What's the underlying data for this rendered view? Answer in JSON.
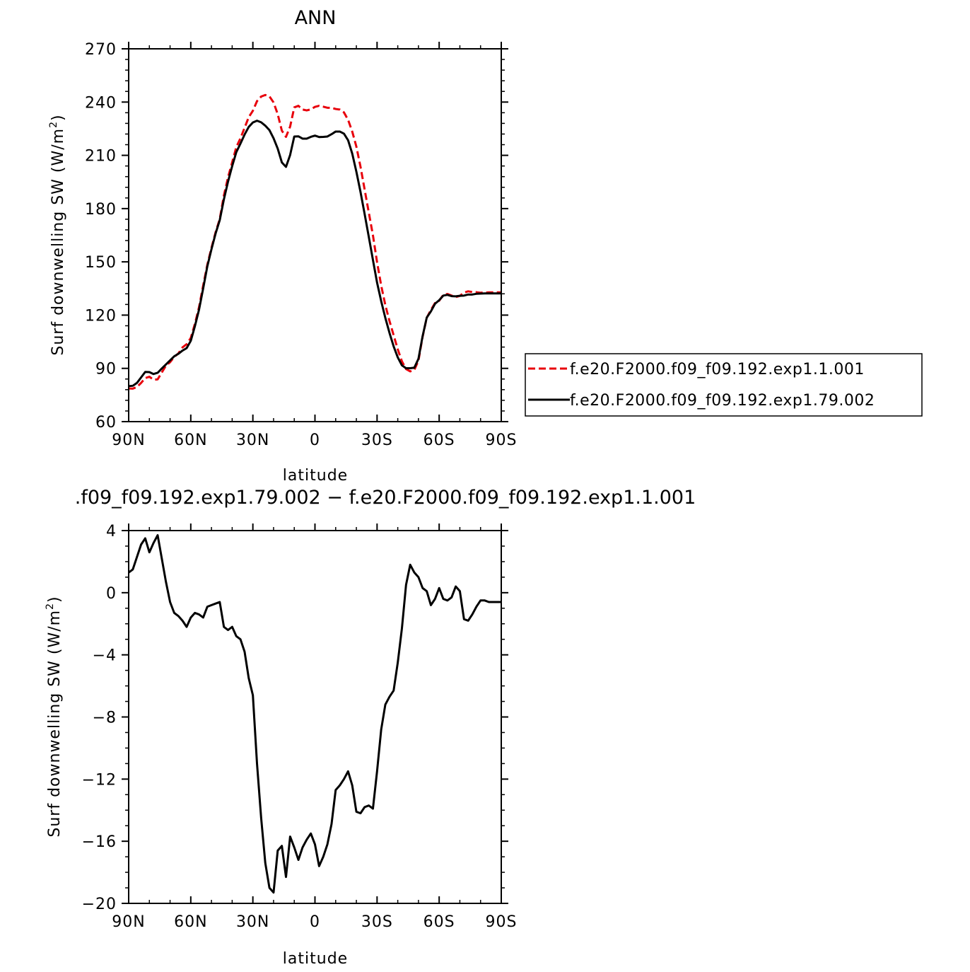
{
  "chart_data": [
    {
      "type": "line",
      "title": "ANN",
      "xlabel": "latitude",
      "ylabel": "Surf downwelling SW (W/m",
      "ylabel_sup": "2",
      "ylabel_end": ")",
      "x_direction": "north-to-south",
      "xlim": [
        90,
        -90
      ],
      "ylim": [
        60,
        270
      ],
      "xticks": [
        {
          "value": 90,
          "label": "90N"
        },
        {
          "value": 60,
          "label": "60N"
        },
        {
          "value": 30,
          "label": "30N"
        },
        {
          "value": 0,
          "label": "0"
        },
        {
          "value": -30,
          "label": "30S"
        },
        {
          "value": -60,
          "label": "60S"
        },
        {
          "value": -90,
          "label": "90S"
        }
      ],
      "yticks": [
        {
          "value": 270,
          "label": "270"
        },
        {
          "value": 240,
          "label": "240"
        },
        {
          "value": 210,
          "label": "210"
        },
        {
          "value": 180,
          "label": "180"
        },
        {
          "value": 150,
          "label": "150"
        },
        {
          "value": 120,
          "label": "120"
        },
        {
          "value": 90,
          "label": "90"
        },
        {
          "value": 60,
          "label": "60"
        }
      ],
      "grid": false,
      "legend_position": "right",
      "series": [
        {
          "name": "f.e20.F2000.f09_f09.192.exp1.1.001",
          "color": "#e8000b",
          "dash": "dashed",
          "x": [
            90,
            88,
            86,
            84,
            82,
            80,
            78,
            76,
            74,
            72,
            70,
            68,
            66,
            64,
            62,
            60,
            58,
            56,
            54,
            52,
            50,
            48,
            46,
            44,
            42,
            40,
            38,
            36,
            34,
            32,
            30,
            28,
            26,
            24,
            22,
            20,
            18,
            16,
            14,
            12,
            10,
            8,
            6,
            4,
            2,
            0,
            -2,
            -4,
            -6,
            -8,
            -10,
            -12,
            -14,
            -16,
            -18,
            -20,
            -22,
            -24,
            -26,
            -28,
            -30,
            -32,
            -34,
            -36,
            -38,
            -40,
            -42,
            -44,
            -46,
            -48,
            -50,
            -52,
            -54,
            -56,
            -58,
            -60,
            -62,
            -64,
            -66,
            -68,
            -70,
            -72,
            -74,
            -76,
            -78,
            -80,
            -82,
            -84,
            -86,
            -88,
            -90
          ],
          "y": [
            78.7,
            78.6,
            79.5,
            81.8,
            84.5,
            85.3,
            83.6,
            83.8,
            87.7,
            91.5,
            93.5,
            96.4,
            98.4,
            101.8,
            103.6,
            107.1,
            115.1,
            124.5,
            136.7,
            148.4,
            157.9,
            166.7,
            174.1,
            187.4,
            197.6,
            206.1,
            214.6,
            219.6,
            225.5,
            231.5,
            235.1,
            240.5,
            243.1,
            244.0,
            243.2,
            239.8,
            233.2,
            223.9,
            220.4,
            226.2,
            237.0,
            237.9,
            235.8,
            235.3,
            235.9,
            237.3,
            237.9,
            237.4,
            236.8,
            236.8,
            236.1,
            235.8,
            234.2,
            230.0,
            223.4,
            214.9,
            203.6,
            190.7,
            177.8,
            165.0,
            149.8,
            136.6,
            125.6,
            116.7,
            108.7,
            100.7,
            94.0,
            89.6,
            88.3,
            89.1,
            94.4,
            107.8,
            118.5,
            122.9,
            126.8,
            128.1,
            131.4,
            131.9,
            131.0,
            130.2,
            130.8,
            132.7,
            133.4,
            133.0,
            132.9,
            132.6,
            132.7,
            132.8,
            132.8,
            132.8,
            132.8
          ]
        },
        {
          "name": "f.e20.F2000.f09_f09.192.exp1.79.002",
          "color": "#000000",
          "dash": "solid",
          "x": [
            90,
            88,
            86,
            84,
            82,
            80,
            78,
            76,
            74,
            72,
            70,
            68,
            66,
            64,
            62,
            60,
            58,
            56,
            54,
            52,
            50,
            48,
            46,
            44,
            42,
            40,
            38,
            36,
            34,
            32,
            30,
            28,
            26,
            24,
            22,
            20,
            18,
            16,
            14,
            12,
            10,
            8,
            6,
            4,
            2,
            0,
            -2,
            -4,
            -6,
            -8,
            -10,
            -12,
            -14,
            -16,
            -18,
            -20,
            -22,
            -24,
            -26,
            -28,
            -30,
            -32,
            -34,
            -36,
            -38,
            -40,
            -42,
            -44,
            -46,
            -48,
            -50,
            -52,
            -54,
            -56,
            -58,
            -60,
            -62,
            -64,
            -66,
            -68,
            -70,
            -72,
            -74,
            -76,
            -78,
            -80,
            -82,
            -84,
            -86,
            -88,
            -90
          ],
          "y": [
            80.0,
            80.2,
            81.8,
            84.9,
            88.0,
            87.9,
            86.8,
            87.5,
            89.9,
            92.2,
            94.5,
            96.8,
            98.2,
            100.0,
            101.4,
            105.5,
            113.8,
            123.1,
            135.1,
            147.5,
            157.1,
            166.0,
            173.5,
            185.2,
            195.2,
            203.9,
            211.8,
            216.6,
            221.7,
            226.0,
            228.5,
            229.5,
            228.6,
            226.7,
            224.2,
            219.6,
            213.8,
            206.0,
            203.5,
            210.2,
            220.6,
            220.7,
            219.4,
            219.4,
            220.4,
            221.1,
            220.3,
            220.4,
            220.6,
            221.9,
            223.4,
            223.4,
            222.2,
            218.5,
            211.0,
            200.8,
            189.4,
            176.9,
            164.1,
            151.1,
            138.3,
            127.8,
            118.4,
            110.0,
            102.4,
            96.2,
            91.7,
            90.1,
            90.1,
            90.4,
            95.4,
            108.1,
            118.6,
            122.1,
            126.4,
            128.4,
            131.0,
            131.4,
            130.7,
            130.6,
            130.9,
            131.0,
            131.6,
            131.6,
            132.0,
            132.1,
            132.2,
            132.2,
            132.2,
            132.2,
            132.2
          ]
        }
      ]
    },
    {
      "type": "line",
      "title": ".f09_f09.192.exp1.79.002 − f.e20.F2000.f09_f09.192.exp1.1.001",
      "xlabel": "latitude",
      "ylabel": "Surf downwelling SW (W/m",
      "ylabel_sup": "2",
      "ylabel_end": ")",
      "x_direction": "north-to-south",
      "xlim": [
        90,
        -90
      ],
      "ylim": [
        -20,
        4
      ],
      "xticks": [
        {
          "value": 90,
          "label": "90N"
        },
        {
          "value": 60,
          "label": "60N"
        },
        {
          "value": 30,
          "label": "30N"
        },
        {
          "value": 0,
          "label": "0"
        },
        {
          "value": -30,
          "label": "30S"
        },
        {
          "value": -60,
          "label": "60S"
        },
        {
          "value": -90,
          "label": "90S"
        }
      ],
      "yticks": [
        {
          "value": 4,
          "label": "4"
        },
        {
          "value": 0,
          "label": "0"
        },
        {
          "value": -4,
          "label": "−4"
        },
        {
          "value": -8,
          "label": "−8"
        },
        {
          "value": -12,
          "label": "−12"
        },
        {
          "value": -16,
          "label": "−16"
        },
        {
          "value": -20,
          "label": "−20"
        }
      ],
      "grid": false,
      "series": [
        {
          "color": "#000000",
          "dash": "solid",
          "x": [
            90,
            88,
            86,
            84,
            82,
            80,
            78,
            76,
            74,
            72,
            70,
            68,
            66,
            64,
            62,
            60,
            58,
            56,
            54,
            52,
            50,
            48,
            46,
            44,
            42,
            40,
            38,
            36,
            34,
            32,
            30,
            28,
            26,
            24,
            22,
            20,
            18,
            16,
            14,
            12,
            10,
            8,
            6,
            4,
            2,
            0,
            -2,
            -4,
            -6,
            -8,
            -10,
            -12,
            -14,
            -16,
            -18,
            -20,
            -22,
            -24,
            -26,
            -28,
            -30,
            -32,
            -34,
            -36,
            -38,
            -40,
            -42,
            -44,
            -46,
            -48,
            -50,
            -52,
            -54,
            -56,
            -58,
            -60,
            -62,
            -64,
            -66,
            -68,
            -70,
            -72,
            -74,
            -76,
            -78,
            -80,
            -82,
            -84,
            -86,
            -88,
            -90
          ],
          "y": [
            1.3,
            1.5,
            2.3,
            3.1,
            3.5,
            2.6,
            3.2,
            3.7,
            2.2,
            0.7,
            -0.6,
            -1.3,
            -1.5,
            -1.8,
            -2.2,
            -1.6,
            -1.3,
            -1.4,
            -1.6,
            -0.9,
            -0.8,
            -0.7,
            -0.6,
            -2.2,
            -2.4,
            -2.2,
            -2.8,
            -3.0,
            -3.8,
            -5.5,
            -6.6,
            -11.0,
            -14.5,
            -17.4,
            -19.0,
            -19.3,
            -16.6,
            -16.3,
            -18.3,
            -15.7,
            -16.4,
            -17.2,
            -16.4,
            -15.9,
            -15.5,
            -16.2,
            -17.6,
            -17.0,
            -16.2,
            -14.9,
            -12.7,
            -12.4,
            -12.0,
            -11.5,
            -12.4,
            -14.1,
            -14.2,
            -13.8,
            -13.7,
            -13.9,
            -11.5,
            -8.8,
            -7.2,
            -6.7,
            -6.3,
            -4.5,
            -2.3,
            0.5,
            1.8,
            1.3,
            1.0,
            0.3,
            0.1,
            -0.8,
            -0.4,
            0.3,
            -0.4,
            -0.5,
            -0.3,
            0.4,
            0.1,
            -1.7,
            -1.8,
            -1.4,
            -0.9,
            -0.5,
            -0.5,
            -0.6,
            -0.6,
            -0.6,
            -0.6
          ]
        }
      ]
    }
  ]
}
